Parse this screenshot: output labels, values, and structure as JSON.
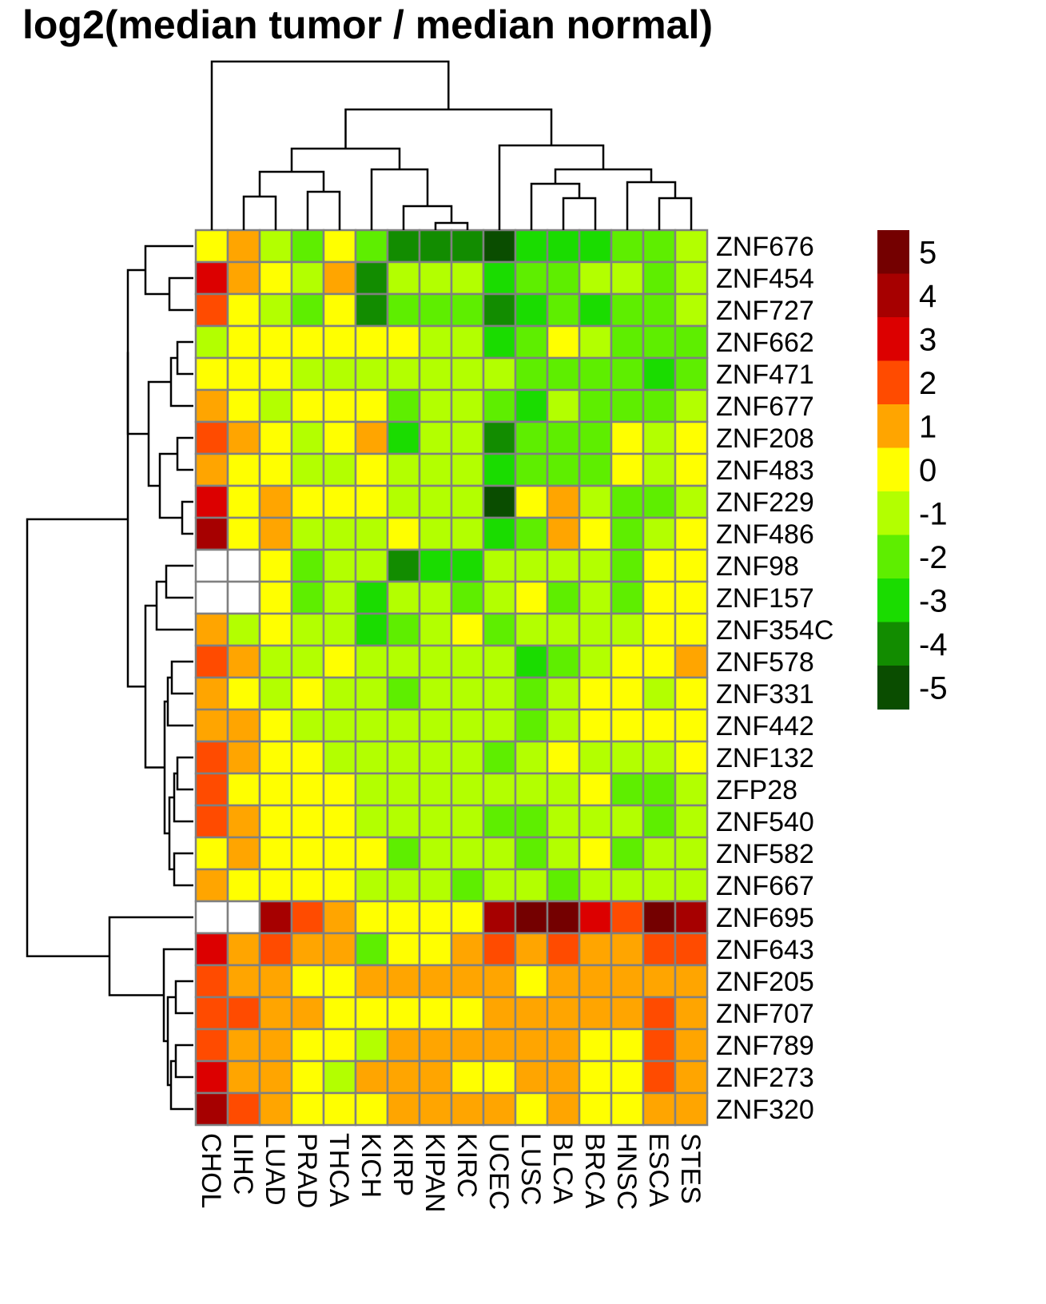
{
  "chart_data": {
    "type": "heatmap",
    "title": "log2(median tumor / median normal)",
    "columns": [
      "CHOL",
      "LIHC",
      "LUAD",
      "PRAD",
      "THCA",
      "KICH",
      "KIRP",
      "KIPAN",
      "KIRC",
      "UCEC",
      "LUSC",
      "BLCA",
      "BRCA",
      "HNSC",
      "ESCA",
      "STES"
    ],
    "rows": [
      "ZNF676",
      "ZNF454",
      "ZNF727",
      "ZNF662",
      "ZNF471",
      "ZNF677",
      "ZNF208",
      "ZNF483",
      "ZNF229",
      "ZNF486",
      "ZNF98",
      "ZNF157",
      "ZNF354C",
      "ZNF578",
      "ZNF331",
      "ZNF442",
      "ZNF132",
      "ZFP28",
      "ZNF540",
      "ZNF582",
      "ZNF667",
      "ZNF695",
      "ZNF643",
      "ZNF205",
      "ZNF707",
      "ZNF789",
      "ZNF273",
      "ZNF320"
    ],
    "values": [
      [
        0,
        1,
        -1,
        -2,
        0,
        -2,
        -4,
        -4,
        -4,
        -5,
        -3,
        -3,
        -3,
        -2,
        -2,
        -1
      ],
      [
        3,
        1,
        0,
        -1,
        1,
        -4,
        -1,
        -1,
        -1,
        -3,
        -2,
        -2,
        -1,
        -1,
        -2,
        -1
      ],
      [
        2,
        0,
        -1,
        -2,
        0,
        -4,
        -2,
        -2,
        -2,
        -4,
        -3,
        -2,
        -3,
        -2,
        -2,
        -1
      ],
      [
        -1,
        0,
        0,
        0,
        0,
        0,
        0,
        -1,
        -1,
        -3,
        -2,
        0,
        -1,
        -2,
        -2,
        -2
      ],
      [
        0,
        0,
        0,
        -1,
        -1,
        -1,
        -1,
        -1,
        -1,
        -1,
        -2,
        -2,
        -2,
        -2,
        -3,
        -2
      ],
      [
        1,
        0,
        -1,
        0,
        0,
        0,
        -2,
        -1,
        -1,
        -2,
        -3,
        -1,
        -2,
        -2,
        -2,
        -1
      ],
      [
        2,
        1,
        0,
        -1,
        0,
        1,
        -3,
        -1,
        -1,
        -4,
        -2,
        -2,
        -2,
        0,
        -1,
        0
      ],
      [
        1,
        0,
        0,
        -1,
        -1,
        0,
        -1,
        -1,
        -1,
        -3,
        -2,
        -2,
        -2,
        0,
        -1,
        0
      ],
      [
        3,
        0,
        1,
        0,
        0,
        0,
        -1,
        -1,
        -1,
        -5,
        0,
        1,
        -1,
        -2,
        -2,
        -1
      ],
      [
        4,
        0,
        1,
        -1,
        -1,
        -1,
        0,
        -1,
        -1,
        -3,
        -2,
        1,
        0,
        -2,
        -1,
        0
      ],
      [
        null,
        null,
        0,
        -2,
        -1,
        -1,
        -4,
        -3,
        -3,
        -1,
        -1,
        -1,
        -1,
        -2,
        0,
        0
      ],
      [
        null,
        null,
        0,
        -2,
        -1,
        -3,
        -1,
        -1,
        -2,
        -1,
        0,
        -2,
        -1,
        -2,
        0,
        0
      ],
      [
        1,
        -1,
        0,
        -1,
        -1,
        -3,
        -2,
        -1,
        0,
        -2,
        -1,
        -1,
        -1,
        -1,
        0,
        0
      ],
      [
        2,
        1,
        -1,
        -1,
        0,
        -1,
        -1,
        -1,
        -1,
        -1,
        -3,
        -2,
        -1,
        0,
        0,
        1
      ],
      [
        1,
        0,
        -1,
        0,
        -1,
        -1,
        -2,
        -1,
        -1,
        -1,
        -2,
        -1,
        0,
        0,
        -1,
        0
      ],
      [
        1,
        1,
        0,
        -1,
        -1,
        -1,
        -1,
        -1,
        -1,
        -1,
        -2,
        -1,
        0,
        0,
        0,
        0
      ],
      [
        2,
        1,
        0,
        0,
        -1,
        -1,
        -1,
        -1,
        -1,
        -2,
        -1,
        0,
        -1,
        -1,
        -1,
        0
      ],
      [
        2,
        0,
        0,
        0,
        0,
        -1,
        -1,
        -1,
        -1,
        -1,
        -1,
        -1,
        0,
        -2,
        -2,
        -1
      ],
      [
        2,
        1,
        0,
        0,
        0,
        -1,
        -1,
        -1,
        -1,
        -2,
        -2,
        -1,
        -1,
        -1,
        -2,
        -1
      ],
      [
        0,
        1,
        0,
        0,
        0,
        0,
        -2,
        -1,
        -1,
        -1,
        -2,
        -1,
        0,
        -2,
        -1,
        -1
      ],
      [
        1,
        0,
        0,
        0,
        0,
        -1,
        -1,
        -1,
        -2,
        -1,
        -1,
        -2,
        -1,
        -1,
        -1,
        -1
      ],
      [
        null,
        null,
        4,
        2,
        1,
        0,
        0,
        0,
        0,
        4,
        5,
        5,
        3,
        2,
        5,
        4
      ],
      [
        3,
        1,
        2,
        1,
        1,
        -2,
        0,
        0,
        1,
        2,
        1,
        2,
        1,
        1,
        2,
        2
      ],
      [
        2,
        1,
        1,
        0,
        0,
        1,
        1,
        1,
        1,
        1,
        0,
        1,
        1,
        1,
        1,
        1
      ],
      [
        2,
        2,
        1,
        1,
        0,
        0,
        0,
        0,
        0,
        1,
        1,
        1,
        1,
        1,
        2,
        1
      ],
      [
        2,
        1,
        1,
        0,
        0,
        -1,
        1,
        1,
        1,
        1,
        1,
        1,
        0,
        0,
        2,
        1
      ],
      [
        3,
        1,
        1,
        0,
        -1,
        1,
        1,
        1,
        0,
        0,
        1,
        1,
        0,
        0,
        2,
        1
      ],
      [
        4,
        2,
        1,
        0,
        0,
        0,
        1,
        1,
        1,
        1,
        0,
        1,
        0,
        0,
        1,
        1
      ]
    ],
    "legend": {
      "ticks": [
        5,
        4,
        3,
        2,
        1,
        0,
        -1,
        -2,
        -3,
        -4,
        -5
      ],
      "colors": [
        "#740000",
        "#A60000",
        "#DC0000",
        "#FF4B00",
        "#FFA500",
        "#FFFF00",
        "#B3FF00",
        "#5EEE00",
        "#1ADC00",
        "#128C00",
        "#0A4D00"
      ],
      "position": "right"
    },
    "na_color": "#FFFFFF",
    "cell_border_color": "#808080",
    "column_dendrogram": true,
    "row_dendrogram": true
  }
}
